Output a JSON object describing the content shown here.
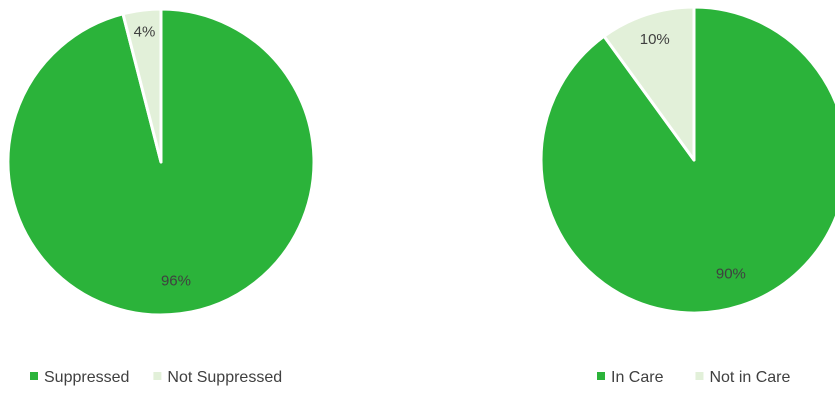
{
  "colors": {
    "primary": "#2bb33a",
    "secondary": "#e2f0d9",
    "stroke": "#ffffff",
    "text": "#404040"
  },
  "chart_data": [
    {
      "type": "pie",
      "categories": [
        "Suppressed",
        "Not Suppressed"
      ],
      "values": [
        96,
        4
      ],
      "data_labels": [
        "96%",
        "4%"
      ],
      "colors": [
        "#2bb33a",
        "#e2f0d9"
      ],
      "legend_position": "bottom",
      "title": ""
    },
    {
      "type": "pie",
      "categories": [
        "In Care",
        "Not in Care"
      ],
      "values": [
        90,
        10
      ],
      "data_labels": [
        "90%",
        "10%"
      ],
      "colors": [
        "#2bb33a",
        "#e2f0d9"
      ],
      "legend_position": "bottom",
      "title": ""
    }
  ]
}
